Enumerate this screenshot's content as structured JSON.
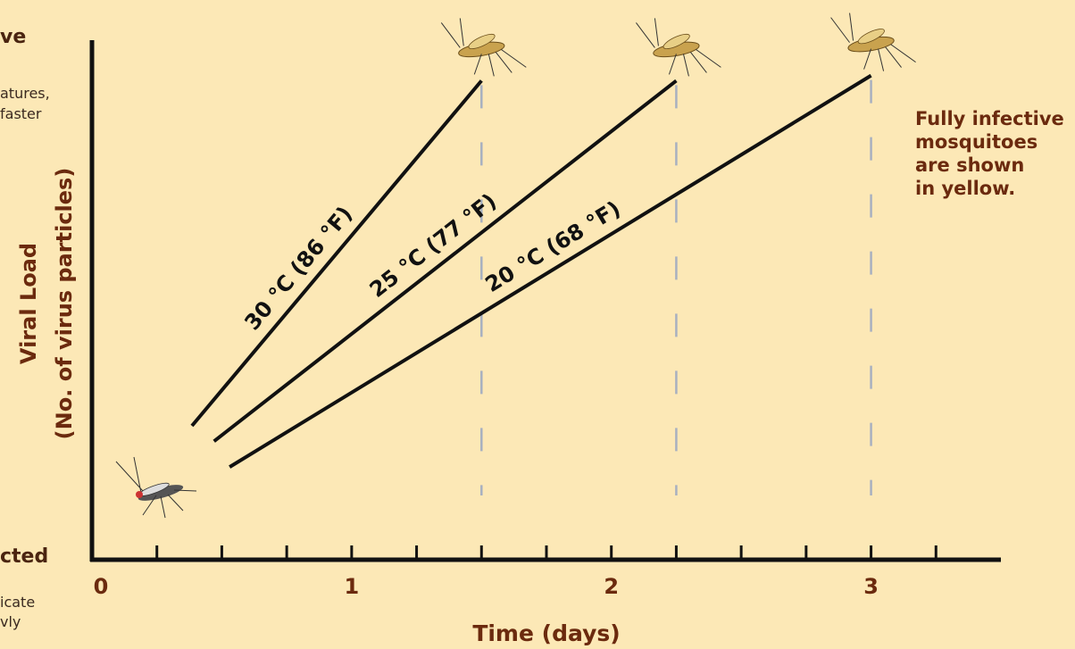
{
  "chart_data": {
    "type": "line",
    "x_label": "Time (days)",
    "y_label": "Viral Load",
    "y_sublabel": "(No. of virus particles)",
    "note": [
      "Fully infective",
      "mosquitoes",
      "are shown",
      "in yellow."
    ],
    "side_text": [
      "ve",
      "atures,",
      "faster",
      "cted",
      "icate",
      "vly"
    ],
    "xlim": [
      0,
      3.5
    ],
    "xticks": [
      0,
      1,
      2,
      3
    ],
    "minor_xticks": [
      0.25,
      0.5,
      0.75,
      1.25,
      1.5,
      1.75,
      2.25,
      2.5,
      2.75,
      3.25
    ],
    "ylim": [
      0,
      100
    ],
    "series": [
      {
        "name": "30 °C (86 °F)",
        "color": "#111111",
        "x": [
          0.385,
          1.5
        ],
        "values": [
          26,
          93
        ]
      },
      {
        "name": "25 °C (77 °F)",
        "color": "#111111",
        "x": [
          0.47,
          2.25
        ],
        "values": [
          23,
          93
        ]
      },
      {
        "name": "20 °C (68 °F)",
        "color": "#111111",
        "x": [
          0.53,
          3
        ],
        "values": [
          18,
          94
        ]
      }
    ]
  }
}
